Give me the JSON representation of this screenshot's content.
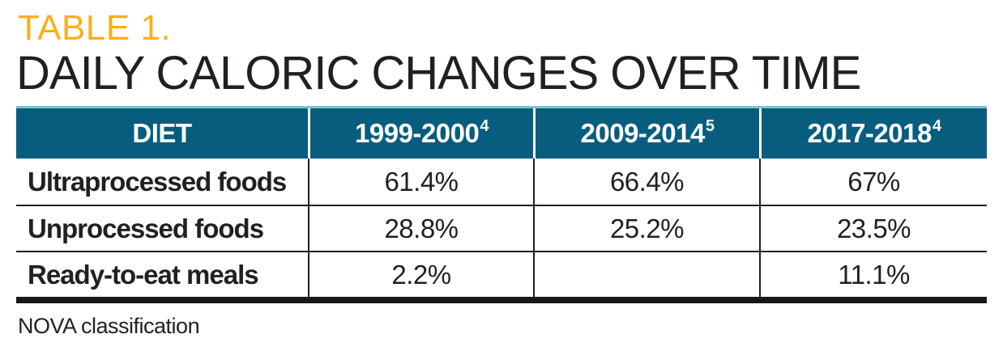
{
  "page": {
    "eyebrow": "TABLE 1.",
    "title": "DAILY CALORIC CHANGES OVER TIME",
    "footnote": "NOVA classification"
  },
  "colors": {
    "header_teal": "#075D7E",
    "accent_gold": "#FAAF1E",
    "top_rule_blue": "#8FB9CE",
    "text_dark": "#231F20",
    "header_text": "#FFFFFF"
  },
  "table": {
    "columns": [
      {
        "label": "DIET",
        "superscript": ""
      },
      {
        "label": "1999-2000",
        "superscript": "4"
      },
      {
        "label": "2009-2014",
        "superscript": "5"
      },
      {
        "label": "2017-2018",
        "superscript": "4"
      }
    ],
    "rows": [
      {
        "diet": "Ultraprocessed foods",
        "values": [
          "61.4%",
          "66.4%",
          "67%"
        ]
      },
      {
        "diet": "Unprocessed foods",
        "values": [
          "28.8%",
          "25.2%",
          "23.5%"
        ]
      },
      {
        "diet": "Ready-to-eat meals",
        "values": [
          "2.2%",
          "",
          "11.1%"
        ]
      }
    ]
  }
}
